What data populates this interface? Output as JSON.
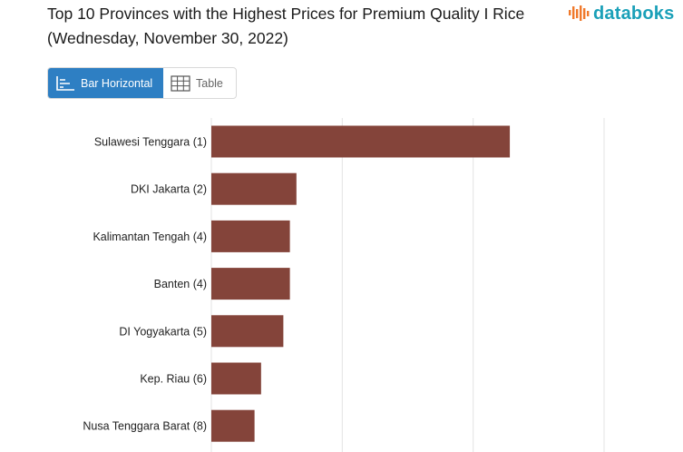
{
  "header": {
    "title": "Top 10 Provinces with the Highest Prices for Premium Quality I Rice (Wednesday, November 30, 2022)",
    "logo_text": "databoks"
  },
  "view_toggle": {
    "bar_label": "Bar Horizontal",
    "table_label": "Table",
    "active": "bar"
  },
  "colors": {
    "bar": "#84443a",
    "grid": "#e3e3e3",
    "toggle_active": "#2e7fc3",
    "logo_teal": "#1aa0b8",
    "logo_orange": "#f0792b"
  },
  "chart_data": {
    "type": "bar",
    "orientation": "horizontal",
    "categories": [
      "Sulawesi Tenggara (1)",
      "DKI Jakarta (2)",
      "Kalimantan Tengah (4)",
      "Banten (4)",
      "DI Yogyakarta (5)",
      "Kep. Riau (6)",
      "Nusa Tenggara Barat (8)"
    ],
    "values": [
      22800,
      6500,
      6000,
      6000,
      5500,
      3800,
      3300
    ],
    "xlim": [
      0,
      30000
    ],
    "x_gridlines": [
      0,
      10000,
      20000,
      30000
    ],
    "grid": true,
    "legend": "none"
  }
}
